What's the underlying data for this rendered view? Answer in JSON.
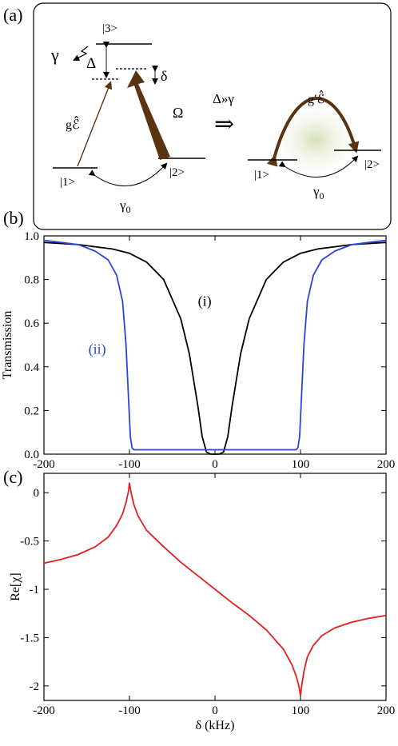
{
  "panel_labels": {
    "a": "(a)",
    "b": "(b)",
    "c": "(c)"
  },
  "diagram": {
    "left": {
      "level3": "|3>",
      "level1": "|1>",
      "level2": "|2>",
      "gamma": "γ",
      "Delta": "Δ",
      "delta": "δ",
      "coupling_probe": "gℰ̂",
      "coupling_control": "Ω",
      "gamma0": "γ",
      "gamma0_sub": "0"
    },
    "condition": "Δ»γ",
    "implies": "⇒",
    "right": {
      "coupling": "g′ℰ̂",
      "level1": "|1>",
      "level2": "|2>",
      "gamma0": "γ",
      "gamma0_sub": "0"
    }
  },
  "colors": {
    "curve_i": "#000000",
    "curve_ii": "#2b45d6",
    "curve_c": "#e02020",
    "arrow_brown": "#5a3410",
    "glow": "#c9d6a8"
  },
  "chart_data": [
    {
      "type": "line",
      "panel": "(b)",
      "ylabel": "Transmission",
      "xlim": [
        -200,
        200
      ],
      "ylim": [
        0,
        1
      ],
      "xticks": [
        -200,
        -100,
        0,
        100,
        200
      ],
      "yticks": [
        0.0,
        0.2,
        0.4,
        0.6,
        0.8,
        1.0
      ],
      "ytick_labels": [
        "0.0",
        "0.2",
        "0.4",
        "0.6",
        "0.8",
        "1.0"
      ],
      "grid": false,
      "series": [
        {
          "name": "(i)",
          "color": "#000000",
          "x": [
            -200,
            -160,
            -120,
            -100,
            -80,
            -60,
            -40,
            -30,
            -20,
            -15,
            -10,
            -5,
            0,
            5,
            10,
            15,
            20,
            30,
            40,
            60,
            80,
            100,
            120,
            160,
            200
          ],
          "y": [
            0.97,
            0.96,
            0.94,
            0.92,
            0.88,
            0.8,
            0.62,
            0.46,
            0.22,
            0.08,
            0.01,
            0.0,
            0.0,
            0.0,
            0.01,
            0.08,
            0.22,
            0.46,
            0.62,
            0.8,
            0.88,
            0.92,
            0.94,
            0.96,
            0.97
          ]
        },
        {
          "name": "(ii)",
          "color": "#2b45d6",
          "x": [
            -200,
            -180,
            -160,
            -140,
            -125,
            -115,
            -108,
            -104,
            -101,
            -99,
            -97,
            -95,
            0,
            95,
            97,
            99,
            101,
            104,
            108,
            115,
            125,
            140,
            160,
            180,
            200
          ],
          "y": [
            0.98,
            0.97,
            0.96,
            0.93,
            0.89,
            0.82,
            0.7,
            0.5,
            0.25,
            0.08,
            0.03,
            0.02,
            0.02,
            0.02,
            0.03,
            0.08,
            0.25,
            0.5,
            0.7,
            0.82,
            0.89,
            0.93,
            0.96,
            0.97,
            0.98
          ]
        }
      ],
      "annotations": [
        "(i)",
        "(ii)"
      ]
    },
    {
      "type": "line",
      "panel": "(c)",
      "xlabel": "δ (kHz)",
      "ylabel": "Re[χ]",
      "xlim": [
        -200,
        200
      ],
      "ylim": [
        -2.15,
        0.2
      ],
      "xticks": [
        -200,
        -100,
        0,
        100,
        200
      ],
      "yticks": [
        0,
        -0.5,
        -1,
        -1.5,
        -2
      ],
      "ytick_labels": [
        "0",
        "-0.5",
        "-1",
        "-1.5",
        "-2"
      ],
      "grid": false,
      "series": [
        {
          "color": "#e02020",
          "x": [
            -200,
            -180,
            -160,
            -140,
            -125,
            -115,
            -108,
            -104,
            -101,
            -100,
            -98,
            -95,
            -90,
            -80,
            -60,
            -40,
            -20,
            0,
            20,
            40,
            60,
            80,
            90,
            95,
            98,
            100,
            101,
            104,
            108,
            115,
            125,
            140,
            160,
            180,
            200
          ],
          "y": [
            -0.73,
            -0.69,
            -0.64,
            -0.56,
            -0.46,
            -0.34,
            -0.22,
            -0.1,
            0.02,
            0.1,
            0.0,
            -0.12,
            -0.24,
            -0.39,
            -0.56,
            -0.72,
            -0.86,
            -1.0,
            -1.14,
            -1.27,
            -1.42,
            -1.62,
            -1.78,
            -1.9,
            -2.0,
            -2.1,
            -2.02,
            -1.85,
            -1.7,
            -1.58,
            -1.48,
            -1.4,
            -1.34,
            -1.3,
            -1.27
          ]
        }
      ]
    }
  ]
}
